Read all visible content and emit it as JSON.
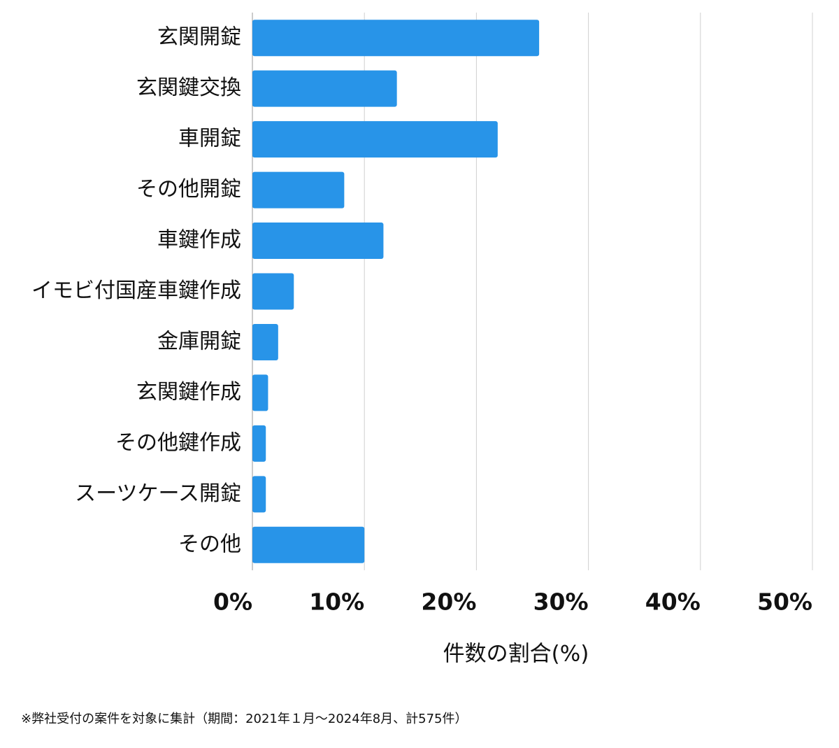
{
  "chart_data": {
    "type": "bar",
    "orientation": "horizontal",
    "categories": [
      "玄関開錠",
      "玄関鍵交換",
      "車開錠",
      "その他開錠",
      "車鍵作成",
      "イモビ付国産車鍵作成",
      "金庫開錠",
      "玄関鍵作成",
      "その他鍵作成",
      "スーツケース開錠",
      "その他"
    ],
    "values": [
      25.6,
      12.9,
      21.9,
      8.2,
      11.7,
      3.7,
      2.3,
      1.4,
      1.2,
      1.2,
      10.0
    ],
    "color": "#2894e8",
    "xlim": [
      0,
      50
    ],
    "xticks": [
      {
        "value": 0,
        "label": "0%"
      },
      {
        "value": 10,
        "label": "10%"
      },
      {
        "value": 20,
        "label": "20%"
      },
      {
        "value": 30,
        "label": "30%"
      },
      {
        "value": 40,
        "label": "40%"
      },
      {
        "value": 50,
        "label": "50%"
      }
    ],
    "xlabel": "件数の割合(%)",
    "grid": true,
    "footnote": "※弊社受付の案件を対象に集計（期間：2021年１月〜2024年8月、計575件）"
  }
}
